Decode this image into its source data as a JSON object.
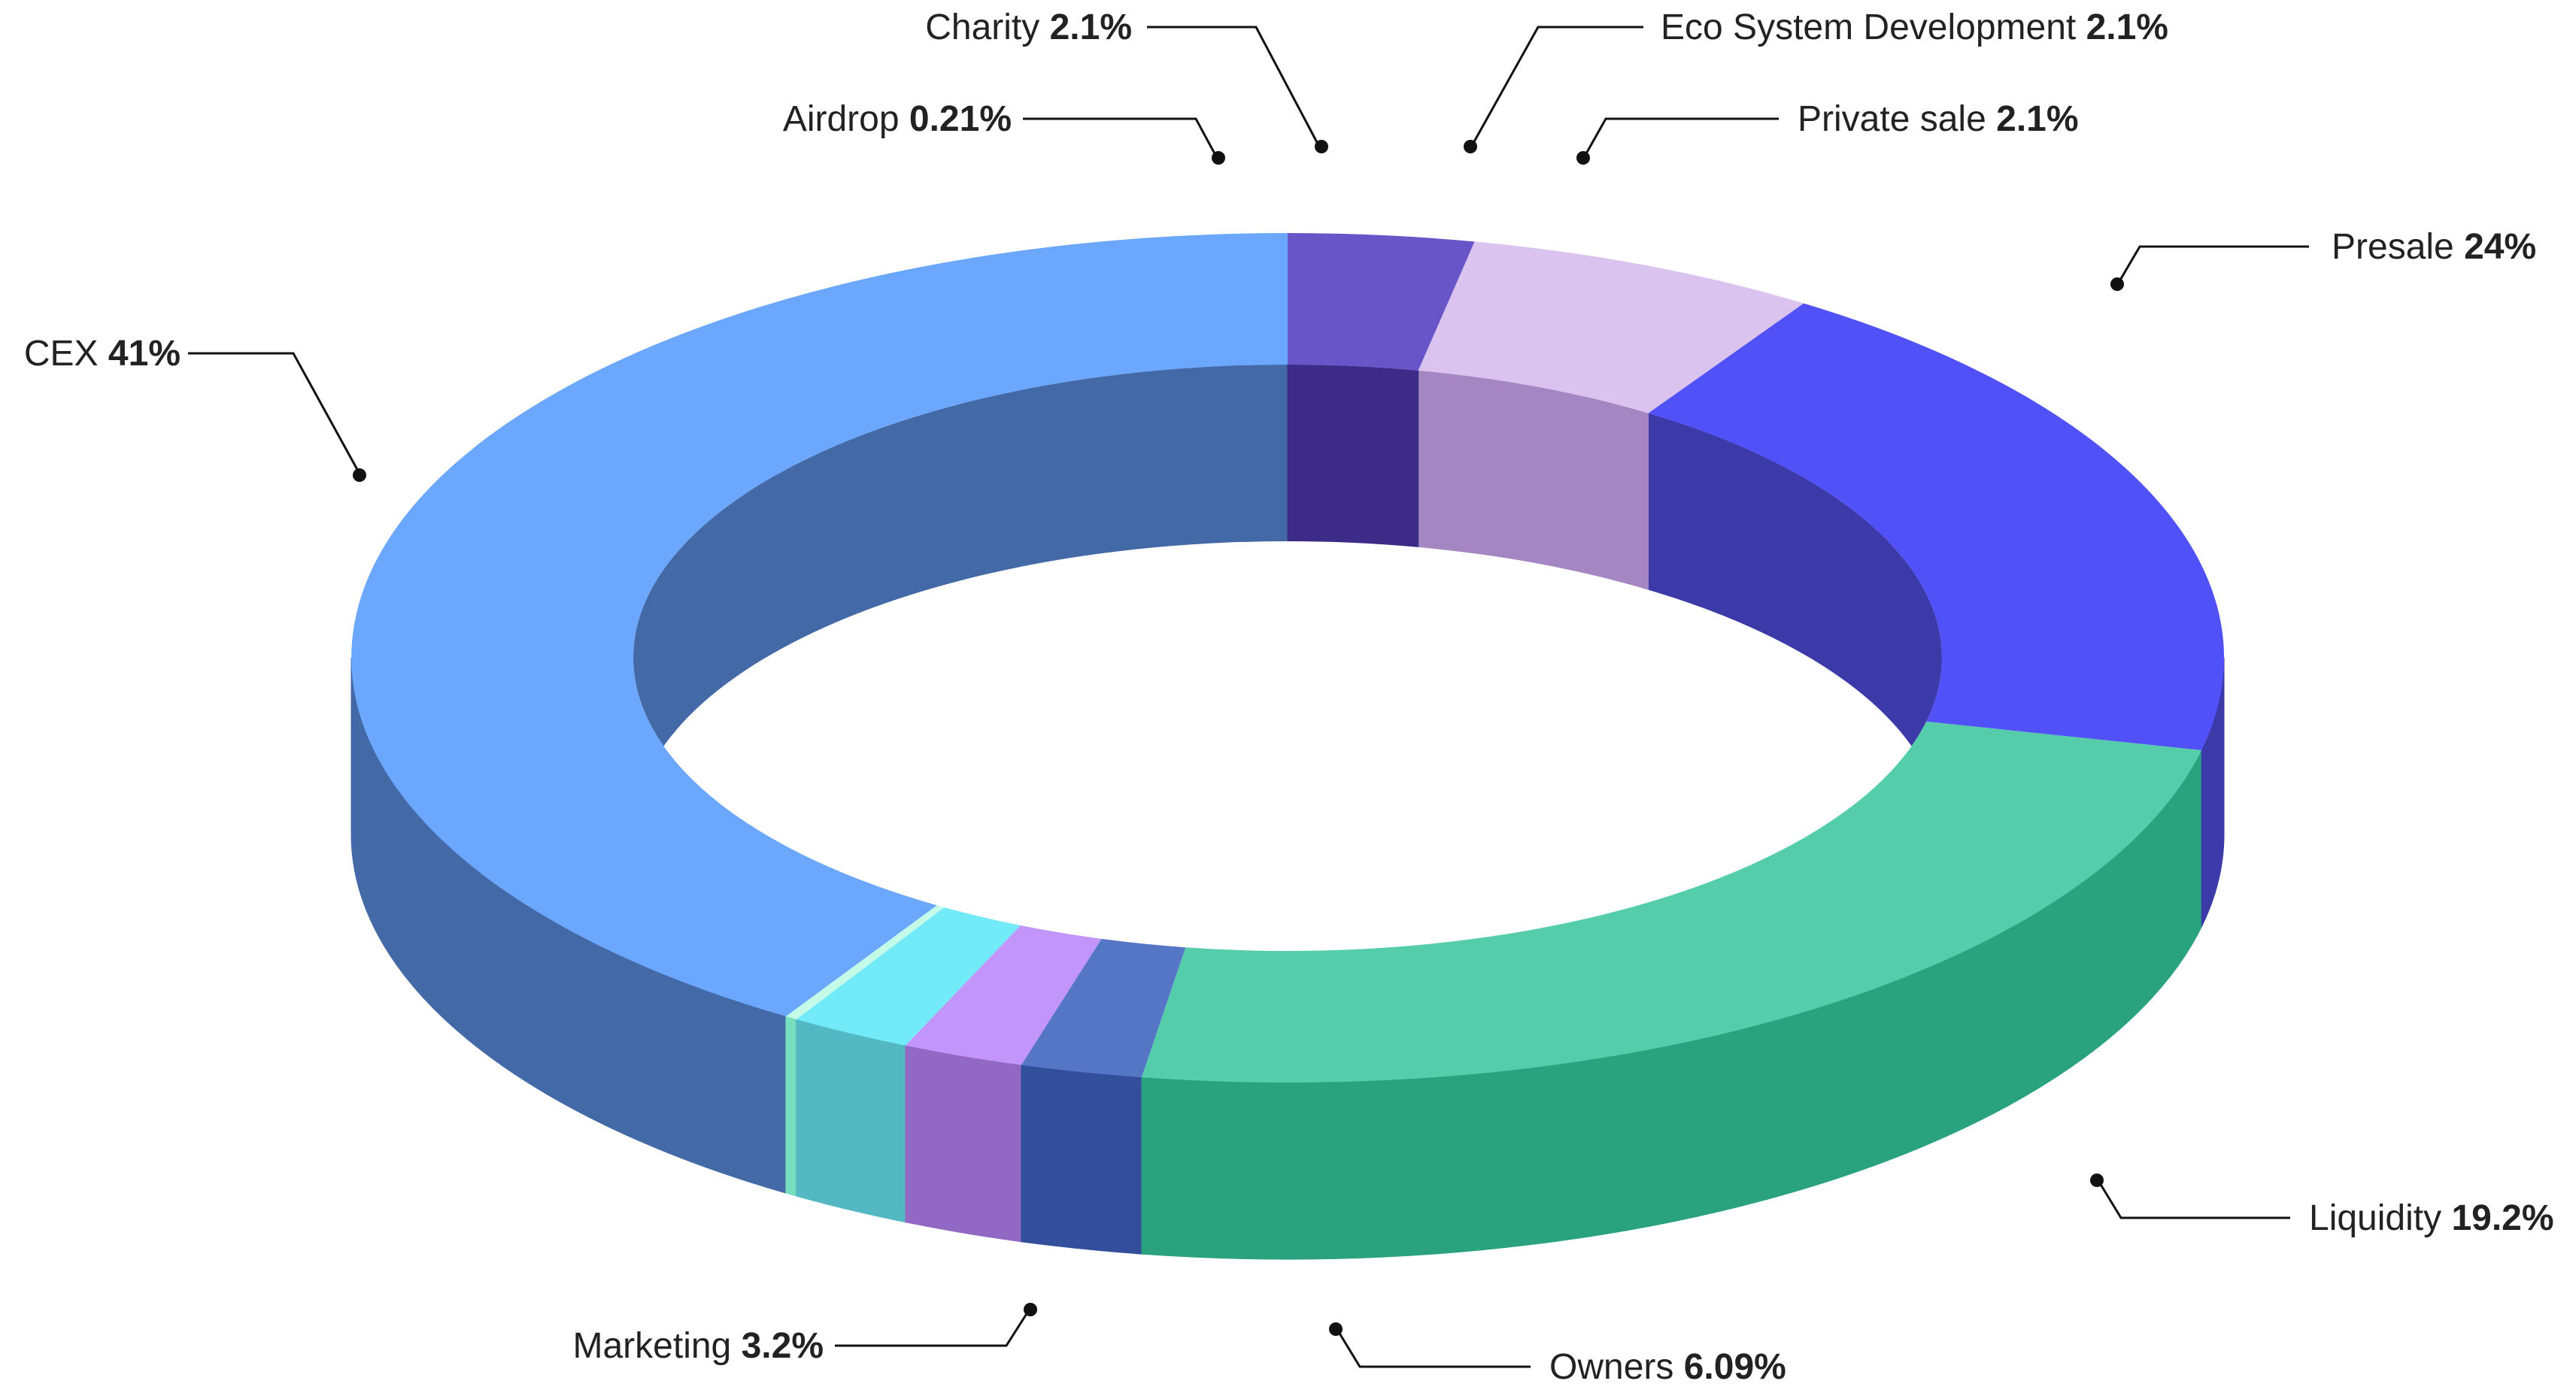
{
  "chart_data": {
    "type": "pie",
    "style": "3d-donut",
    "title": "",
    "legend": "none",
    "slices": [
      {
        "name": "CEX",
        "label": "CEX",
        "value_label": "41%",
        "value": 41,
        "top_color": "#6aa7fd",
        "side_color": "#4469a7"
      },
      {
        "name": "Airdrop",
        "label": "Airdrop",
        "value_label": "0.21%",
        "value": 0.21,
        "top_color": "#c4fbe8",
        "side_color": "#76ddbd"
      },
      {
        "name": "Charity",
        "label": "Charity",
        "value_label": "2.1%",
        "value": 2.1,
        "top_color": "#73eaf8",
        "side_color": "#53b8c2"
      },
      {
        "name": "Eco System Development",
        "label": "Eco System Development",
        "value_label": "2.1%",
        "value": 2.1,
        "top_color": "#c195f9",
        "side_color": "#9268c5"
      },
      {
        "name": "Private sale",
        "label": "Private sale",
        "value_label": "2.1%",
        "value": 2.1,
        "top_color": "#5575c5",
        "side_color": "#334f9b"
      },
      {
        "name": "Presale",
        "label": "Presale",
        "value_label": "24%",
        "value": 24,
        "top_color": "#56cdaa",
        "side_color": "#2aa27e"
      },
      {
        "name": "Liquidity",
        "label": "Liquidity",
        "value_label": "19.2%",
        "value": 19.2,
        "top_color": "#5051f6",
        "side_color": "#3c3aa9"
      },
      {
        "name": "Owners",
        "label": "Owners",
        "value_label": "6.09%",
        "value": 6.09,
        "top_color": "#dac3ef",
        "side_color": "#a486c3"
      },
      {
        "name": "Marketing",
        "label": "Marketing",
        "value_label": "3.2%",
        "value": 3.2,
        "top_color": "#6856c8",
        "side_color": "#3c2c88"
      }
    ]
  }
}
